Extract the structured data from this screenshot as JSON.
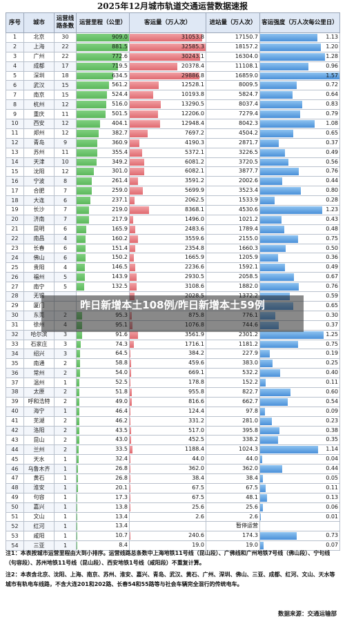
{
  "title": "2025年12月城市轨道交通运营数据速报",
  "headers": {
    "seq": "序号",
    "city": "城市",
    "lines": "运营线路条数",
    "mileage": "运营里程（公里）",
    "passengers": "客运量（万人次）",
    "entries": "进站量（万人次）",
    "intensity": "客运强度（万人次每公里日）"
  },
  "rows": [
    {
      "n": "1",
      "city": "北京",
      "lines": "30",
      "mileage": "909.0",
      "passengers": "31053.8",
      "entries": "17150.7",
      "intensity": "1.13"
    },
    {
      "n": "2",
      "city": "上海",
      "lines": "22",
      "mileage": "881.5",
      "passengers": "32585.3",
      "entries": "18157.2",
      "intensity": "1.20"
    },
    {
      "n": "3",
      "city": "广州",
      "lines": "22",
      "mileage": "772.6",
      "passengers": "30243.1",
      "entries": "16304.0",
      "intensity": "1.28"
    },
    {
      "n": "4",
      "city": "成都",
      "lines": "17",
      "mileage": "719.5",
      "passengers": "20378.4",
      "entries": "11108.1",
      "intensity": "0.96"
    },
    {
      "n": "5",
      "city": "深圳",
      "lines": "18",
      "mileage": "634.5",
      "passengers": "29886.8",
      "entries": "16859.0",
      "intensity": "1.57"
    },
    {
      "n": "6",
      "city": "武汉",
      "lines": "15",
      "mileage": "561.2",
      "passengers": "12528.1",
      "entries": "8009.5",
      "intensity": "0.72"
    },
    {
      "n": "7",
      "city": "南京",
      "lines": "15",
      "mileage": "524.4",
      "passengers": "10193.8",
      "entries": "5824.7",
      "intensity": "0.64"
    },
    {
      "n": "8",
      "city": "杭州",
      "lines": "12",
      "mileage": "516.0",
      "passengers": "13290.5",
      "entries": "8037.4",
      "intensity": "0.83"
    },
    {
      "n": "9",
      "city": "重庆",
      "lines": "11",
      "mileage": "501.5",
      "passengers": "12206.0",
      "entries": "7279.4",
      "intensity": "0.79"
    },
    {
      "n": "10",
      "city": "西安",
      "lines": "12",
      "mileage": "404.1",
      "passengers": "12948.4",
      "entries": "8042.3",
      "intensity": "1.08"
    },
    {
      "n": "11",
      "city": "郑州",
      "lines": "12",
      "mileage": "382.7",
      "passengers": "7697.2",
      "entries": "4504.2",
      "intensity": "0.65"
    },
    {
      "n": "12",
      "city": "青岛",
      "lines": "9",
      "mileage": "360.9",
      "passengers": "4190.3",
      "entries": "2871.7",
      "intensity": "0.37"
    },
    {
      "n": "13",
      "city": "苏州",
      "lines": "11",
      "mileage": "355.4",
      "passengers": "5372.1",
      "entries": "3226.5",
      "intensity": "0.49"
    },
    {
      "n": "14",
      "city": "天津",
      "lines": "10",
      "mileage": "349.2",
      "passengers": "6081.2",
      "entries": "3720.5",
      "intensity": "0.56"
    },
    {
      "n": "15",
      "city": "沈阳",
      "lines": "12",
      "mileage": "301.0",
      "passengers": "6082.1",
      "entries": "3877.7",
      "intensity": "0.76"
    },
    {
      "n": "16",
      "city": "宁波",
      "lines": "8",
      "mileage": "261.4",
      "passengers": "3591.2",
      "entries": "2002.6",
      "intensity": "0.44"
    },
    {
      "n": "17",
      "city": "合肥",
      "lines": "7",
      "mileage": "259.0",
      "passengers": "5699.9",
      "entries": "3523.4",
      "intensity": "0.80"
    },
    {
      "n": "18",
      "city": "大连",
      "lines": "6",
      "mileage": "237.1",
      "passengers": "2062.5",
      "entries": "1533.9",
      "intensity": "0.28"
    },
    {
      "n": "19",
      "city": "长沙",
      "lines": "7",
      "mileage": "219.0",
      "passengers": "8368.1",
      "entries": "4530.6",
      "intensity": "1.23"
    },
    {
      "n": "20",
      "city": "济南",
      "lines": "7",
      "mileage": "217.9",
      "passengers": "1496.0",
      "entries": "1021.2",
      "intensity": "0.43"
    },
    {
      "n": "21",
      "city": "昆明",
      "lines": "6",
      "mileage": "165.9",
      "passengers": "2483.6",
      "entries": "1789.4",
      "intensity": "0.48"
    },
    {
      "n": "22",
      "city": "南昌",
      "lines": "4",
      "mileage": "160.2",
      "passengers": "3559.6",
      "entries": "2155.0",
      "intensity": "0.75"
    },
    {
      "n": "23",
      "city": "长春",
      "lines": "6",
      "mileage": "151.4",
      "passengers": "2354.8",
      "entries": "1660.3",
      "intensity": "0.50"
    },
    {
      "n": "24",
      "city": "佛山",
      "lines": "6",
      "mileage": "150.2",
      "passengers": "1665.9",
      "entries": "1205.9",
      "intensity": "0.36"
    },
    {
      "n": "25",
      "city": "贵阳",
      "lines": "4",
      "mileage": "146.5",
      "passengers": "2236.6",
      "entries": "1592.1",
      "intensity": "0.49"
    },
    {
      "n": "26",
      "city": "福州",
      "lines": "5",
      "mileage": "143.9",
      "passengers": "2930.5",
      "entries": "2058.5",
      "intensity": "0.67"
    },
    {
      "n": "27",
      "city": "南宁",
      "lines": "5",
      "mileage": "132.5",
      "passengers": "3108.6",
      "entries": "1882.0",
      "intensity": "0.76"
    },
    {
      "n": "28",
      "city": "无锡",
      "lines": "",
      "mileage": "",
      "passengers": "2028.5",
      "entries": "1372.2",
      "intensity": "0.59"
    },
    {
      "n": "29",
      "city": "厦门",
      "lines": "",
      "mileage": "",
      "passengers": "",
      "entries": "",
      "intensity": "0.65"
    },
    {
      "n": "30",
      "city": "东莞",
      "lines": "2",
      "mileage": "95.3",
      "passengers": "875.8",
      "entries": "776.1",
      "intensity": "0.30"
    },
    {
      "n": "31",
      "city": "徐州",
      "lines": "4",
      "mileage": "95.1",
      "passengers": "1076.8",
      "entries": "744.6",
      "intensity": "0.37"
    },
    {
      "n": "32",
      "city": "哈尔滨",
      "lines": "3",
      "mileage": "91.6",
      "passengers": "3561.9",
      "entries": "2301.2",
      "intensity": "1.25"
    },
    {
      "n": "33",
      "city": "石家庄",
      "lines": "3",
      "mileage": "74.3",
      "passengers": "1716.1",
      "entries": "1181.2",
      "intensity": "0.75"
    },
    {
      "n": "34",
      "city": "绍兴",
      "lines": "3",
      "mileage": "64.5",
      "passengers": "384.2",
      "entries": "227.9",
      "intensity": "0.19"
    },
    {
      "n": "35",
      "city": "南通",
      "lines": "2",
      "mileage": "58.8",
      "passengers": "459.6",
      "entries": "383.0",
      "intensity": "0.25"
    },
    {
      "n": "36",
      "city": "常州",
      "lines": "2",
      "mileage": "54.0",
      "passengers": "669.1",
      "entries": "532.2",
      "intensity": "0.40"
    },
    {
      "n": "37",
      "city": "温州",
      "lines": "1",
      "mileage": "52.5",
      "passengers": "178.8",
      "entries": "152.2",
      "intensity": "0.11"
    },
    {
      "n": "38",
      "city": "太原",
      "lines": "2",
      "mileage": "51.8",
      "passengers": "955.8",
      "entries": "822.7",
      "intensity": "0.60"
    },
    {
      "n": "39",
      "city": "呼和浩特",
      "lines": "2",
      "mileage": "49.0",
      "passengers": "816.6",
      "entries": "662.7",
      "intensity": "0.54"
    },
    {
      "n": "40",
      "city": "海宁",
      "lines": "1",
      "mileage": "46.4",
      "passengers": "124.4",
      "entries": "97.8",
      "intensity": "0.09"
    },
    {
      "n": "41",
      "city": "芜湖",
      "lines": "2",
      "mileage": "46.2",
      "passengers": "331.2",
      "entries": "281.0",
      "intensity": "0.23"
    },
    {
      "n": "42",
      "city": "洛阳",
      "lines": "2",
      "mileage": "43.5",
      "passengers": "517.0",
      "entries": "395.8",
      "intensity": "0.38"
    },
    {
      "n": "43",
      "city": "昆山",
      "lines": "2",
      "mileage": "43.0",
      "passengers": "452.5",
      "entries": "338.2",
      "intensity": "0.35"
    },
    {
      "n": "44",
      "city": "兰州",
      "lines": "2",
      "mileage": "33.5",
      "passengers": "1188.4",
      "entries": "1024.3",
      "intensity": "1.14"
    },
    {
      "n": "45",
      "city": "天水",
      "lines": "1",
      "mileage": "32.4",
      "passengers": "44.0",
      "entries": "44.0",
      "intensity": "0.04"
    },
    {
      "n": "46",
      "city": "乌鲁木齐",
      "lines": "1",
      "mileage": "26.8",
      "passengers": "362.0",
      "entries": "362.0",
      "intensity": "0.44"
    },
    {
      "n": "47",
      "city": "黄石",
      "lines": "1",
      "mileage": "26.8",
      "passengers": "38.4",
      "entries": "38.4",
      "intensity": "0.05"
    },
    {
      "n": "48",
      "city": "淮安",
      "lines": "1",
      "mileage": "20.1",
      "passengers": "67.5",
      "entries": "67.5",
      "intensity": "0.11"
    },
    {
      "n": "49",
      "city": "句容",
      "lines": "1",
      "mileage": "17.3",
      "passengers": "67.5",
      "entries": "48.1",
      "intensity": "0.13"
    },
    {
      "n": "50",
      "city": "嘉兴",
      "lines": "1",
      "mileage": "13.8",
      "passengers": "25.6",
      "entries": "25.6",
      "intensity": "0.06"
    },
    {
      "n": "51",
      "city": "文山",
      "lines": "1",
      "mileage": "13.4",
      "passengers": "2.6",
      "entries": "2.6",
      "intensity": "0.01"
    },
    {
      "n": "52",
      "city": "红河",
      "lines": "1",
      "mileage": "13.4",
      "passengers": "",
      "entries": "暂停运营",
      "intensity": ""
    },
    {
      "n": "53",
      "city": "咸阳",
      "lines": "1",
      "mileage": "10.7",
      "passengers": "240.6",
      "entries": "174.3",
      "intensity": "0.73"
    },
    {
      "n": "54",
      "city": "三亚",
      "lines": "1",
      "mileage": "8.4",
      "passengers": "19.0",
      "entries": "19.0",
      "intensity": "0.07"
    }
  ],
  "notes": {
    "note1": "注1：本表按城市运营里程由大到小排序。运营线路总条数中上海地铁11号线（昆山段）、广佛线和广州地铁7号线（佛山段）、宁句线（句容段）、苏州地铁11号线（昆山段）、西安地铁1号线（咸阳段）不重复计算。",
    "note2": "注2：本表含北京、沈阳、上海、南京、苏州、淮安、嘉兴、青岛、武汉、黄石、广州、深圳、佛山、三亚、成都、红河、文山、天水等城市有轨电车线路，不含大连201和202路、长春54和55路等与社会车辆完全混行的传统电车。",
    "source": "数据来源：交通运输部"
  },
  "overlay_text": "昨日新增本土108例/昨日新增本土59例",
  "colors": {
    "mileage_bar": "#5cb85c",
    "passengers_bar": "#e06a70",
    "intensity_bar": "#4a90d9",
    "header_bg": "#dfe8f5"
  }
}
